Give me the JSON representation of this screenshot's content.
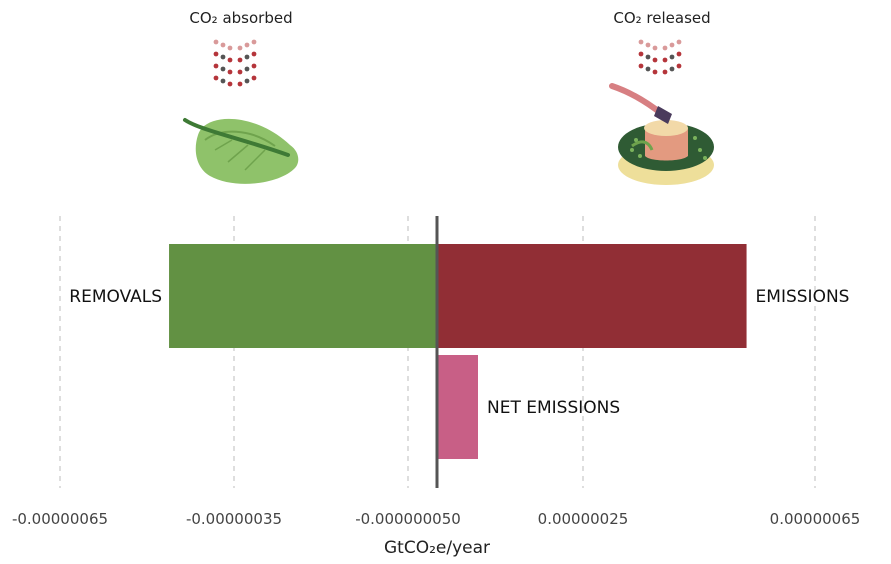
{
  "chart_data": {
    "type": "bar",
    "orientation": "horizontal",
    "xlabel": "GtCO₂e/year",
    "xlim": [
      -6.5e-07,
      6.5e-07
    ],
    "ticks": [
      {
        "value": -6.5e-07,
        "label": "-0.00000065"
      },
      {
        "value": -3.5e-07,
        "label": "-0.00000035"
      },
      {
        "value": -5e-08,
        "label": "-0.000000050"
      },
      {
        "value": 2.5e-07,
        "label": "0.00000025"
      },
      {
        "value": 6.5e-07,
        "label": "0.00000065"
      }
    ],
    "grid": true,
    "bars": [
      {
        "label": "REMOVALS",
        "start": 0,
        "end": -4.62e-07,
        "color": "#629143"
      },
      {
        "label": "EMISSIONS",
        "start": 0,
        "end": 5.32e-07,
        "color": "#912E35"
      },
      {
        "label": "NET EMISSIONS",
        "start": 0,
        "end": 7e-08,
        "color": "#C85F86"
      }
    ],
    "icons": [
      {
        "title": "CO₂ absorbed",
        "icon": "leaf-icon"
      },
      {
        "title": "CO₂ released",
        "icon": "tree-stump-axe-icon"
      }
    ]
  }
}
